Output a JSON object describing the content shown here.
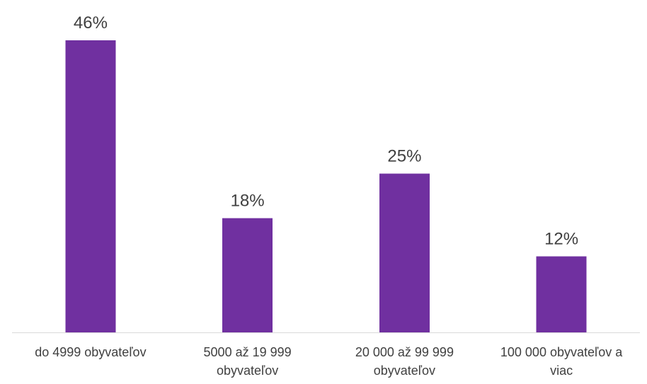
{
  "chart_data": {
    "type": "bar",
    "categories": [
      [
        "do 4999 obyvateľov"
      ],
      [
        "5000 až 19 999",
        "obyvateľov"
      ],
      [
        "20 000 až 99 999",
        "obyvateľov"
      ],
      [
        "100 000 obyvateľov a",
        "viac"
      ]
    ],
    "values": [
      46,
      18,
      25,
      12
    ],
    "data_labels": [
      "46%",
      "18%",
      "25%",
      "12%"
    ],
    "ylim": [
      0,
      48
    ],
    "grid": false,
    "legend": "none",
    "bar_color": "#7030A0",
    "axis_color": "#D9D9D9",
    "text_color": "#404040"
  }
}
